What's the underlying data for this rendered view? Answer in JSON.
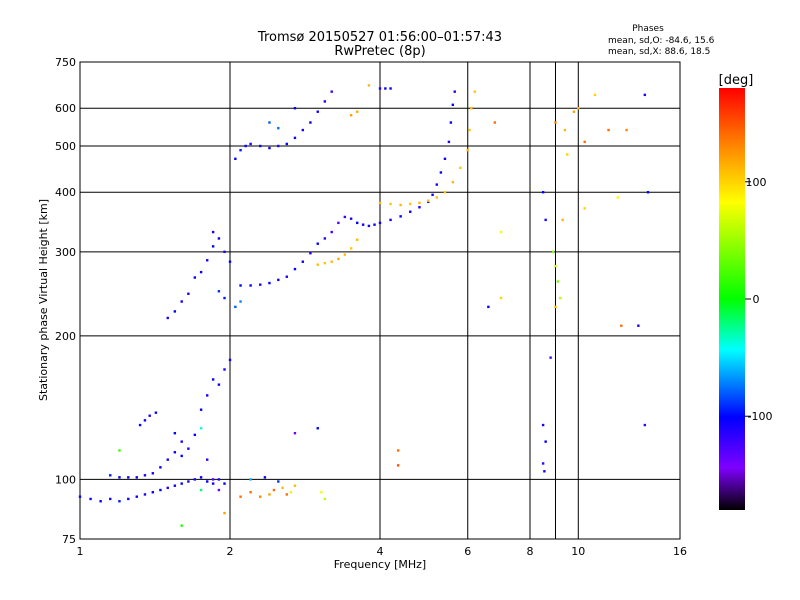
{
  "chart_data": {
    "type": "scatter",
    "title": "Tromsø 20150527 01:56:00–01:57:43",
    "subtitle": "RwPretec (8p)",
    "xlabel": "Frequency [MHz]",
    "ylabel": "Stationary phase Virtual Height [km]",
    "x_scale": "log",
    "y_scale": "log",
    "xlim": [
      1,
      16
    ],
    "ylim": [
      75,
      750
    ],
    "x_ticks": [
      1,
      2,
      4,
      6,
      8,
      10,
      16
    ],
    "y_ticks": [
      75,
      100,
      200,
      300,
      400,
      500,
      600,
      750
    ],
    "x_tick_labels": [
      "1",
      "2",
      "4",
      "6",
      "8",
      "10",
      "16"
    ],
    "y_tick_labels": [
      "75",
      "100",
      "200",
      "300",
      "400",
      "500",
      "600",
      "750"
    ],
    "grid": true,
    "stats": {
      "heading": "Phases",
      "o_line": "mean, sd,O: -84.6, 15.6",
      "x_line": "mean, sd,X:  88.6, 18.5"
    },
    "colorbar": {
      "label": "[deg]",
      "range": [
        -180,
        180
      ],
      "ticks": [
        100,
        0,
        -100
      ],
      "tick_labels": [
        "100",
        "0",
        "-100"
      ]
    },
    "series": [
      {
        "trace": "lower-E-trace",
        "points": [
          [
            1.0,
            92,
            -100
          ],
          [
            1.05,
            91,
            -105
          ],
          [
            1.1,
            90,
            -100
          ],
          [
            1.15,
            91,
            -110
          ],
          [
            1.2,
            90,
            -95
          ],
          [
            1.25,
            91,
            -105
          ],
          [
            1.3,
            92,
            -100
          ],
          [
            1.35,
            93,
            -110
          ],
          [
            1.4,
            94,
            -105
          ],
          [
            1.45,
            95,
            -100
          ],
          [
            1.5,
            96,
            -110
          ],
          [
            1.55,
            97,
            -105
          ],
          [
            1.6,
            98,
            -100
          ],
          [
            1.65,
            99,
            -110
          ],
          [
            1.7,
            100,
            -105
          ],
          [
            1.75,
            101,
            -100
          ],
          [
            1.8,
            99,
            -100
          ],
          [
            1.85,
            98,
            -105
          ],
          [
            1.9,
            100,
            -110
          ],
          [
            1.95,
            98,
            -100
          ]
        ]
      },
      {
        "trace": "E-trace-100",
        "points": [
          [
            1.15,
            102,
            -95
          ],
          [
            1.2,
            101,
            -100
          ],
          [
            1.25,
            101,
            -105
          ],
          [
            1.3,
            101,
            -100
          ],
          [
            1.35,
            102,
            -110
          ],
          [
            1.4,
            103,
            -105
          ],
          [
            1.45,
            106,
            -100
          ],
          [
            1.5,
            110,
            -110
          ],
          [
            1.55,
            114,
            -105
          ],
          [
            1.6,
            112,
            -100
          ],
          [
            1.65,
            116,
            -110
          ],
          [
            1.7,
            124,
            -105
          ],
          [
            1.75,
            140,
            -100
          ],
          [
            1.8,
            150,
            -110
          ],
          [
            1.85,
            162,
            -105
          ],
          [
            1.9,
            158,
            -100
          ],
          [
            1.95,
            170,
            -110
          ],
          [
            2.0,
            178,
            -105
          ]
        ]
      },
      {
        "trace": "E-trace-130",
        "points": [
          [
            1.32,
            130,
            -100
          ],
          [
            1.35,
            133,
            -105
          ],
          [
            1.38,
            136,
            -110
          ],
          [
            1.42,
            138,
            -100
          ]
        ]
      },
      {
        "trace": "E-sporadic-points",
        "points": [
          [
            1.2,
            115,
            20
          ],
          [
            1.55,
            125,
            -100
          ],
          [
            1.6,
            120,
            -110
          ],
          [
            1.75,
            128,
            -40
          ],
          [
            1.8,
            110,
            -120
          ],
          [
            1.85,
            100,
            -130
          ],
          [
            1.9,
            95,
            -140
          ],
          [
            1.95,
            85,
            120
          ],
          [
            1.6,
            80,
            10
          ],
          [
            1.75,
            95,
            -20
          ],
          [
            2.1,
            92,
            140
          ],
          [
            2.2,
            94,
            140
          ],
          [
            2.3,
            92,
            130
          ],
          [
            2.4,
            93,
            120
          ],
          [
            2.45,
            95,
            140
          ],
          [
            2.55,
            96,
            110
          ],
          [
            2.6,
            93,
            140
          ],
          [
            2.65,
            94,
            90
          ],
          [
            2.2,
            100,
            -60
          ],
          [
            2.35,
            101,
            -100
          ],
          [
            2.5,
            99,
            -90
          ],
          [
            2.7,
            125,
            -140
          ],
          [
            3.05,
            94,
            80
          ],
          [
            3.1,
            91,
            60
          ],
          [
            3.0,
            128,
            -100
          ],
          [
            4.35,
            115,
            140
          ],
          [
            4.35,
            107,
            150
          ],
          [
            2.7,
            97,
            110
          ]
        ]
      },
      {
        "trace": "F1-trace",
        "points": [
          [
            1.5,
            218,
            -110
          ],
          [
            1.55,
            225,
            -100
          ],
          [
            1.6,
            236,
            -105
          ],
          [
            1.65,
            245,
            -110
          ],
          [
            1.7,
            265,
            -100
          ],
          [
            1.75,
            272,
            -105
          ],
          [
            1.8,
            288,
            -110
          ],
          [
            1.85,
            308,
            -100
          ],
          [
            1.9,
            320,
            -105
          ],
          [
            1.95,
            300,
            -110
          ],
          [
            2.0,
            286,
            -100
          ],
          [
            1.9,
            248,
            -90
          ],
          [
            1.95,
            240,
            -95
          ],
          [
            2.05,
            230,
            -80
          ],
          [
            2.1,
            236,
            -70
          ]
        ]
      },
      {
        "trace": "F2-trace-low",
        "points": [
          [
            2.1,
            255,
            -100
          ],
          [
            2.2,
            255,
            -105
          ],
          [
            2.3,
            256,
            -110
          ],
          [
            2.4,
            258,
            -100
          ],
          [
            2.5,
            262,
            -105
          ],
          [
            2.6,
            266,
            -110
          ],
          [
            2.7,
            276,
            -100
          ],
          [
            2.8,
            286,
            -105
          ],
          [
            2.9,
            298,
            -110
          ],
          [
            3.0,
            312,
            -100
          ],
          [
            3.1,
            320,
            -115
          ],
          [
            3.2,
            330,
            -125
          ],
          [
            3.3,
            345,
            -130
          ],
          [
            3.4,
            355,
            -120
          ],
          [
            3.5,
            352,
            -110
          ],
          [
            3.6,
            345,
            -100
          ],
          [
            3.7,
            342,
            -105
          ],
          [
            3.8,
            340,
            -110
          ],
          [
            3.9,
            342,
            -100
          ],
          [
            4.0,
            345,
            -105
          ],
          [
            4.2,
            350,
            -110
          ],
          [
            4.4,
            356,
            -100
          ],
          [
            4.6,
            364,
            -105
          ],
          [
            4.8,
            372,
            -110
          ],
          [
            5.0,
            382,
            -100
          ],
          [
            5.1,
            395,
            -105
          ],
          [
            5.2,
            415,
            -110
          ],
          [
            5.3,
            440,
            -100
          ],
          [
            5.4,
            470,
            -105
          ],
          [
            5.5,
            510,
            -110
          ],
          [
            5.55,
            560,
            -100
          ],
          [
            5.6,
            610,
            -105
          ],
          [
            5.65,
            650,
            -110
          ]
        ]
      },
      {
        "trace": "F2-trace-high",
        "points": [
          [
            1.85,
            330,
            -110
          ],
          [
            2.05,
            470,
            -100
          ],
          [
            2.1,
            490,
            -95
          ],
          [
            2.15,
            500,
            -105
          ],
          [
            2.2,
            505,
            -110
          ],
          [
            2.3,
            500,
            -100
          ],
          [
            2.4,
            495,
            -105
          ],
          [
            2.5,
            500,
            -110
          ],
          [
            2.6,
            505,
            -100
          ],
          [
            2.7,
            520,
            -105
          ],
          [
            2.8,
            540,
            -110
          ],
          [
            2.9,
            560,
            -100
          ],
          [
            3.0,
            590,
            -105
          ],
          [
            3.1,
            620,
            -110
          ],
          [
            3.2,
            650,
            -120
          ],
          [
            2.4,
            560,
            -80
          ],
          [
            2.5,
            545,
            -75
          ],
          [
            4.0,
            660,
            -110
          ],
          [
            4.1,
            660,
            -105
          ],
          [
            4.2,
            660,
            -100
          ],
          [
            2.7,
            600,
            -100
          ]
        ]
      },
      {
        "trace": "X-trace-low",
        "points": [
          [
            3.0,
            282,
            110
          ],
          [
            3.1,
            284,
            105
          ],
          [
            3.2,
            286,
            110
          ],
          [
            3.3,
            290,
            115
          ],
          [
            3.4,
            296,
            110
          ],
          [
            3.5,
            305,
            105
          ],
          [
            3.6,
            318,
            110
          ]
        ]
      },
      {
        "trace": "X-trace-high",
        "points": [
          [
            4.0,
            380,
            110
          ],
          [
            4.2,
            378,
            105
          ],
          [
            4.4,
            376,
            110
          ],
          [
            4.6,
            378,
            105
          ],
          [
            4.8,
            380,
            110
          ],
          [
            5.0,
            384,
            105
          ],
          [
            5.2,
            390,
            110
          ],
          [
            5.4,
            400,
            105
          ],
          [
            5.6,
            420,
            110
          ],
          [
            5.8,
            450,
            105
          ],
          [
            6.0,
            490,
            110
          ],
          [
            6.05,
            540,
            105
          ],
          [
            6.1,
            600,
            110
          ],
          [
            6.2,
            650,
            105
          ],
          [
            3.5,
            580,
            120
          ],
          [
            3.6,
            590,
            115
          ],
          [
            3.8,
            670,
            110
          ]
        ]
      },
      {
        "trace": "high-frequency-scatter",
        "points": [
          [
            8.5,
            400,
            -100
          ],
          [
            8.6,
            350,
            -110
          ],
          [
            8.5,
            130,
            -110
          ],
          [
            8.6,
            120,
            -100
          ],
          [
            8.5,
            108,
            -120
          ],
          [
            8.55,
            104,
            -110
          ],
          [
            8.8,
            180,
            -130
          ],
          [
            8.9,
            300,
            40
          ],
          [
            9.0,
            280,
            60
          ],
          [
            9.1,
            260,
            40
          ],
          [
            9.2,
            240,
            60
          ],
          [
            9.0,
            230,
            110
          ],
          [
            9.3,
            350,
            110
          ],
          [
            9.5,
            480,
            100
          ],
          [
            9.4,
            540,
            110
          ],
          [
            9.8,
            590,
            120
          ],
          [
            10.3,
            370,
            100
          ],
          [
            10.3,
            510,
            140
          ],
          [
            10.8,
            640,
            100
          ],
          [
            11.5,
            540,
            140
          ],
          [
            12.5,
            540,
            130
          ],
          [
            13.6,
            640,
            -110
          ],
          [
            13.8,
            400,
            -100
          ],
          [
            13.2,
            210,
            -110
          ],
          [
            13.6,
            130,
            -120
          ],
          [
            9.0,
            560,
            130
          ],
          [
            7.0,
            330,
            80
          ],
          [
            7.0,
            240,
            100
          ],
          [
            6.6,
            230,
            -100
          ],
          [
            6.8,
            560,
            140
          ],
          [
            12.2,
            210,
            140
          ],
          [
            10.0,
            600,
            110
          ],
          [
            12.0,
            390,
            80
          ]
        ]
      }
    ]
  }
}
